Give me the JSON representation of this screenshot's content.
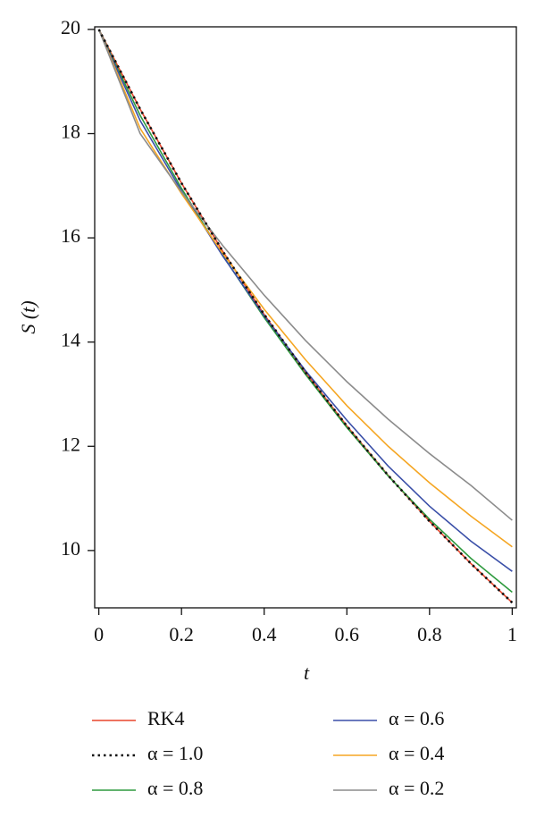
{
  "chart_data": {
    "type": "line",
    "x_label": "t",
    "y_label": "S (t)",
    "x": [
      0,
      0.1,
      0.2,
      0.3,
      0.4,
      0.5,
      0.6,
      0.7,
      0.8,
      0.9,
      1
    ],
    "series": [
      {
        "name": "RK4",
        "color": "#e8452c",
        "style": "solid",
        "values": [
          20,
          18.47,
          17.05,
          15.74,
          14.53,
          13.42,
          12.39,
          11.44,
          10.56,
          9.75,
          9.0
        ]
      },
      {
        "name": "α = 1.0",
        "color": "#111111",
        "style": "dotted",
        "values": [
          20,
          18.47,
          17.05,
          15.74,
          14.53,
          13.42,
          12.39,
          11.44,
          10.56,
          9.75,
          9.0
        ]
      },
      {
        "name": "α = 0.8",
        "color": "#2e9a3e",
        "style": "solid",
        "values": [
          20,
          18.35,
          16.95,
          15.66,
          14.47,
          13.38,
          12.36,
          11.43,
          10.6,
          9.85,
          9.2
        ]
      },
      {
        "name": "α = 0.6",
        "color": "#3a4fa8",
        "style": "solid",
        "values": [
          20,
          18.25,
          16.9,
          15.65,
          14.5,
          13.45,
          12.5,
          11.62,
          10.85,
          10.18,
          9.6
        ]
      },
      {
        "name": "α = 0.4",
        "color": "#f5a623",
        "style": "solid",
        "values": [
          20,
          18.1,
          16.85,
          15.7,
          14.63,
          13.66,
          12.78,
          12.0,
          11.3,
          10.66,
          10.07
        ]
      },
      {
        "name": "α = 0.2",
        "color": "#8c8c8c",
        "style": "solid",
        "values": [
          20,
          18.0,
          16.88,
          15.85,
          14.9,
          14.03,
          13.24,
          12.52,
          11.86,
          11.25,
          10.58
        ]
      }
    ],
    "xlim": [
      -0.01,
      1.01
    ],
    "ylim": [
      8.9,
      20.05
    ],
    "xticks": [
      0,
      0.2,
      0.4,
      0.6,
      0.8,
      1
    ],
    "yticks": [
      10,
      12,
      14,
      16,
      18,
      20
    ],
    "legend": "bottom"
  }
}
